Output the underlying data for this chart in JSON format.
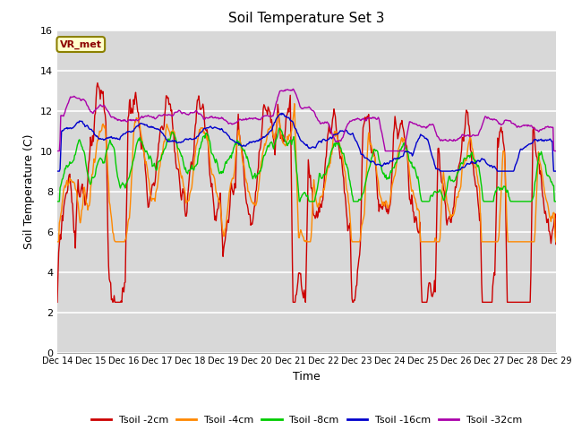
{
  "title": "Soil Temperature Set 3",
  "xlabel": "Time",
  "ylabel": "Soil Temperature (C)",
  "ylim": [
    0,
    16
  ],
  "yticks": [
    0,
    2,
    4,
    6,
    8,
    10,
    12,
    14,
    16
  ],
  "fig_color": "#ffffff",
  "plot_bg_color": "#d8d8d8",
  "legend_label": "VR_met",
  "series_colors": {
    "Tsoil -2cm": "#cc0000",
    "Tsoil -4cm": "#ff8800",
    "Tsoil -8cm": "#00cc00",
    "Tsoil -16cm": "#0000cc",
    "Tsoil -32cm": "#aa00aa"
  },
  "x_tick_labels": [
    "Dec 14",
    "Dec 15",
    "Dec 16",
    "Dec 17",
    "Dec 18",
    "Dec 19",
    "Dec 20",
    "Dec 21",
    "Dec 22",
    "Dec 23",
    "Dec 24",
    "Dec 25",
    "Dec 26",
    "Dec 27",
    "Dec 28",
    "Dec 29"
  ],
  "n_points": 720
}
